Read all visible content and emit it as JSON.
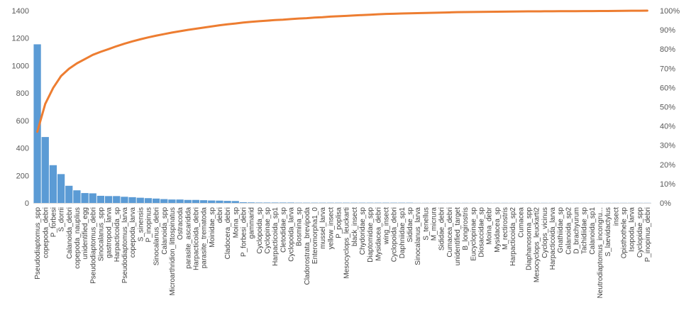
{
  "chart_data": {
    "type": "bar+line",
    "title": "",
    "xlabel": "",
    "ylabel": "",
    "ylim": [
      0,
      1400
    ],
    "y_ticks": [
      "0",
      "200",
      "400",
      "600",
      "800",
      "1000",
      "1200",
      "1400"
    ],
    "y2lim": [
      0,
      100
    ],
    "y2_ticks": [
      "0%",
      "10%",
      "20%",
      "30%",
      "40%",
      "50%",
      "60%",
      "70%",
      "80%",
      "90%",
      "100%"
    ],
    "grid": false,
    "legend": "none",
    "colors": {
      "bars": "#5B9BD5",
      "line": "#ED7D31",
      "axis": "#D9D9D9"
    },
    "categories": [
      "Pseudodiaptomus_spp",
      "copepoda_debri",
      "P_forbesi",
      "S_dorrii",
      "Calanoida_debri",
      "copepoda_nauplius",
      "unidentified_egg",
      "Pseudodiaptomus_debri",
      "Sinocalanus_spp",
      "gastropod_larva",
      "Harpacticoida_sp",
      "Pseudodiaptomus_larva",
      "copepoda_larva",
      "S_sinensis",
      "P_inopinus",
      "Sinocalanus_debri",
      "Calanoida_spp",
      "Microarthridion_littospinatus",
      "Ostracoda",
      "parasite_ascaridida",
      "Harpacticoida_debri",
      "parasite_trematoda",
      "Moinidae_sp",
      "debri",
      "Cladocera_debri",
      "Moina_sp",
      "P_forbesi_debri",
      "gammarid",
      "Cyclopoida_sp",
      "Cyclopinae_sp",
      "Harpacticoida_sp1",
      "Cletodidae_sp",
      "Cyclopoida_larva",
      "Bosmina_sp",
      "Cladorostrata_brevipoda",
      "Enteromorpha1_0",
      "mussel_larva",
      "yellow_insect",
      "P_poplisa",
      "Mesocyclops_leuckarti",
      "black_insect",
      "Chydoridae_sp",
      "Diaptomidae_spp",
      "Mysidacea_debri",
      "wing_insect",
      "Cyclopoida_debri",
      "Daphniidae_sp1",
      "Sididae_sp",
      "Sinocalanus_larva",
      "S_tenellus",
      "M_micrura",
      "Sididae_debri",
      "Cumacea_debri",
      "unidentified_target",
      "B_longirostris",
      "Eucyclopinae_sp",
      "Diosaccidae_sp",
      "Moina_debr",
      "Mysidacea_sp",
      "M_rectirostris",
      "Harpacticoida_sp2",
      "Cumacea",
      "Diaphanosoma_spp",
      "Mesocyclops_leuckarti2",
      "Cyclops_vicinus",
      "Harpacticoida_larva",
      "Gnathiidae_sp",
      "Calanoida_sp2",
      "D_brachyurum",
      "Tachidiidae_sp",
      "Calanoida_sp1",
      "Neutrodiaptomus_incongru...",
      "S_laevidactylus",
      "insect",
      "Opisthothele_sp",
      "Isopoda_larva",
      "Cyclopidae_spp",
      "P_inopinus_debri"
    ],
    "series": [
      {
        "kind": "bar",
        "axis": "left",
        "values": [
          1155,
          480,
          275,
          210,
          125,
          92,
          72,
          70,
          52,
          50,
          50,
          45,
          42,
          38,
          35,
          32,
          28,
          25,
          25,
          22,
          22,
          20,
          18,
          17,
          15,
          14,
          5,
          4,
          3,
          3,
          3,
          3,
          3,
          2,
          2,
          2,
          2,
          2,
          2,
          2,
          2,
          2,
          2,
          2,
          2,
          2,
          2,
          2,
          1,
          1,
          1,
          1,
          1,
          1,
          1,
          1,
          1,
          1,
          1,
          1,
          1,
          1,
          1,
          1,
          1,
          1,
          1,
          1,
          1,
          1,
          1,
          1,
          1,
          1,
          1,
          1,
          1,
          1
        ]
      },
      {
        "kind": "line",
        "axis": "right",
        "values": [
          37.0,
          51.5,
          59.8,
          66.0,
          69.8,
          72.6,
          74.8,
          77.0,
          78.6,
          80.0,
          81.5,
          82.8,
          84.0,
          85.1,
          86.1,
          87.0,
          87.8,
          88.6,
          89.3,
          90.0,
          90.6,
          91.2,
          91.8,
          92.4,
          92.9,
          93.3,
          93.8,
          94.2,
          94.5,
          94.8,
          95.1,
          95.3,
          95.6,
          95.9,
          96.1,
          96.4,
          96.6,
          96.9,
          97.1,
          97.3,
          97.5,
          97.7,
          97.9,
          98.1,
          98.3,
          98.4,
          98.5,
          98.6,
          98.7,
          98.8,
          98.9,
          99.0,
          99.1,
          99.2,
          99.25,
          99.3,
          99.35,
          99.4,
          99.45,
          99.5,
          99.55,
          99.6,
          99.62,
          99.64,
          99.66,
          99.68,
          99.7,
          99.72,
          99.74,
          99.76,
          99.78,
          99.8,
          99.82,
          99.86,
          99.9,
          99.94,
          99.97,
          100.0
        ]
      }
    ]
  }
}
